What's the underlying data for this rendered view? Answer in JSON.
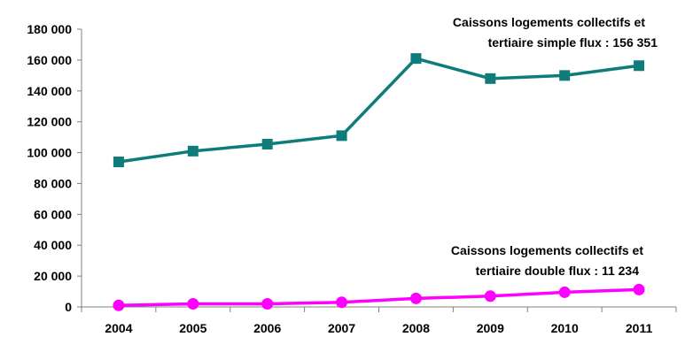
{
  "chart_data": {
    "type": "line",
    "title": "",
    "xlabel": "",
    "ylabel": "",
    "categories": [
      "2004",
      "2005",
      "2006",
      "2007",
      "2008",
      "2009",
      "2010",
      "2011"
    ],
    "ylim": [
      0,
      180000
    ],
    "yticks": [
      0,
      20000,
      40000,
      60000,
      80000,
      100000,
      120000,
      140000,
      160000,
      180000
    ],
    "ytick_labels": [
      "0",
      "20 000",
      "40 000",
      "60 000",
      "80 000",
      "100 000",
      "120 000",
      "140 000",
      "160 000",
      "180 000"
    ],
    "grid": false,
    "legend": "none",
    "series": [
      {
        "values": [
          94000,
          101000,
          105500,
          111000,
          161000,
          148000,
          150000,
          156351
        ],
        "color": "#0e7c7b",
        "marker": "square",
        "annotation": [
          "Caissons logements collectifs et",
          "tertiaire simple flux : 156 351"
        ]
      },
      {
        "values": [
          1000,
          2000,
          2000,
          3000,
          5500,
          7000,
          9500,
          11234
        ],
        "color": "#ff00ff",
        "marker": "circle",
        "annotation": [
          "Caissons logements collectifs et",
          "tertiaire double flux : 11 234"
        ]
      }
    ]
  }
}
